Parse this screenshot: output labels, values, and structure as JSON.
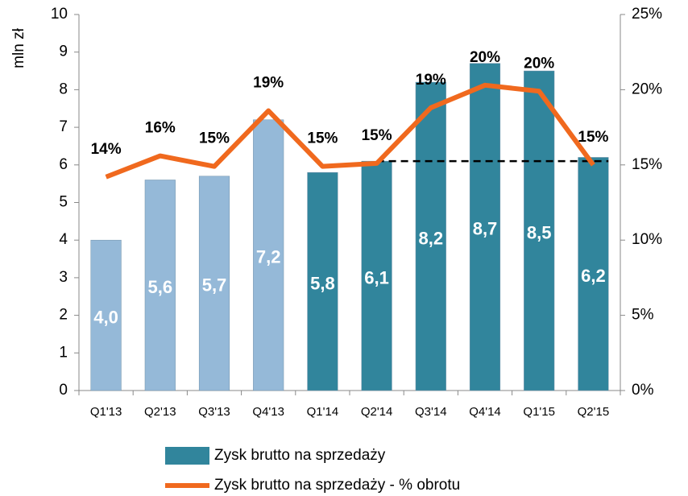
{
  "chart_data": {
    "type": "bar",
    "y_label": "mln zł",
    "categories": [
      "Q1'13",
      "Q2'13",
      "Q3'13",
      "Q4'13",
      "Q1'14",
      "Q2'14",
      "Q3'14",
      "Q4'14",
      "Q1'15",
      "Q2'15"
    ],
    "series": [
      {
        "name": "Zysk brutto na sprzedaży",
        "type": "bar",
        "color": "#31859c",
        "colors": [
          "#95b9d8",
          "#95b9d8",
          "#95b9d8",
          "#95b9d8",
          "#31859c",
          "#31859c",
          "#31859c",
          "#31859c",
          "#31859c",
          "#31859c"
        ],
        "values": [
          4.0,
          5.6,
          5.7,
          7.2,
          5.8,
          6.1,
          8.2,
          8.7,
          8.5,
          6.2
        ],
        "value_labels": [
          "4,0",
          "5,6",
          "5,7",
          "7,2",
          "5,8",
          "6,1",
          "8,2",
          "8,7",
          "8,5",
          "6,2"
        ]
      },
      {
        "name": "Zysk brutto na sprzedaży - % obrotu",
        "type": "line",
        "axis": "y2",
        "color": "#f0691e",
        "values": [
          14.2,
          15.6,
          14.9,
          18.6,
          14.9,
          15.1,
          18.8,
          20.3,
          19.9,
          15.0
        ],
        "value_labels": [
          "14%",
          "16%",
          "15%",
          "19%",
          "15%",
          "15%",
          "19%",
          "20%",
          "20%",
          "15%"
        ]
      }
    ],
    "reference_line": 6.1,
    "ylim": [
      0,
      10
    ],
    "yticks": [
      0,
      1,
      2,
      3,
      4,
      5,
      6,
      7,
      8,
      9,
      10
    ],
    "y2lim": [
      0,
      25
    ],
    "y2ticks": [
      {
        "value": 0,
        "label": "0%"
      },
      {
        "value": 5,
        "label": "5%"
      },
      {
        "value": 10,
        "label": "10%"
      },
      {
        "value": 15,
        "label": "15%"
      },
      {
        "value": 20,
        "label": "20%"
      },
      {
        "value": 25,
        "label": "25%"
      }
    ],
    "grid": false
  }
}
